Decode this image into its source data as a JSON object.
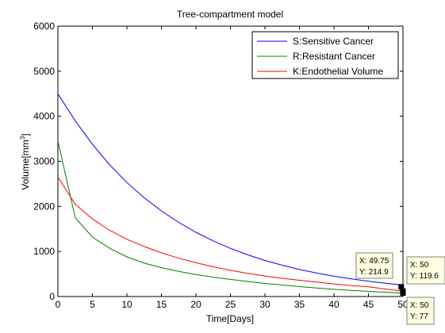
{
  "chart_data": {
    "type": "line",
    "title": "Tree-compartment model",
    "xlabel": "Time[Days]",
    "ylabel_main": "Volume[mm",
    "ylabel_sup": "3",
    "ylabel_end": "]",
    "xlim": [
      0,
      50
    ],
    "ylim": [
      0,
      6000
    ],
    "x_ticks": [
      0,
      5,
      10,
      15,
      20,
      25,
      30,
      35,
      40,
      45,
      50
    ],
    "y_ticks": [
      0,
      1000,
      2000,
      3000,
      4000,
      5000,
      6000
    ],
    "grid": false,
    "legend_position": "top-right",
    "x": [
      0,
      2.5,
      5,
      7.5,
      10,
      12.5,
      15,
      17.5,
      20,
      22.5,
      25,
      27.5,
      30,
      32.5,
      35,
      37.5,
      40,
      42.5,
      45,
      47.5,
      50
    ],
    "series": [
      {
        "name": "S:Sensitive Cancer",
        "color": "#0000ff",
        "values": [
          4500,
          3900,
          3380,
          2920,
          2530,
          2190,
          1900,
          1645,
          1425,
          1235,
          1070,
          925,
          800,
          695,
          600,
          520,
          450,
          390,
          338,
          293,
          254
        ]
      },
      {
        "name": "R:Resistant Cancer",
        "color": "#008000",
        "values": [
          3450,
          1750,
          1320,
          1070,
          880,
          740,
          640,
          560,
          490,
          430,
          380,
          335,
          290,
          255,
          220,
          190,
          160,
          135,
          115,
          95,
          77
        ]
      },
      {
        "name": "K:Endothelial Volume",
        "color": "#ff0000",
        "values": [
          2650,
          2050,
          1720,
          1470,
          1270,
          1110,
          970,
          850,
          750,
          660,
          580,
          515,
          455,
          405,
          360,
          320,
          280,
          245,
          215,
          165,
          119.6
        ]
      }
    ],
    "datatips": [
      {
        "x_label": "X: 49.75",
        "y_label": "Y: 214.9",
        "x": 49.75,
        "y": 214.9
      },
      {
        "x_label": "X: 50",
        "y_label": "Y: 119.6",
        "x": 50,
        "y": 119.6
      },
      {
        "x_label": "X: 50",
        "y_label": "Y: 77",
        "x": 50,
        "y": 77
      }
    ]
  }
}
